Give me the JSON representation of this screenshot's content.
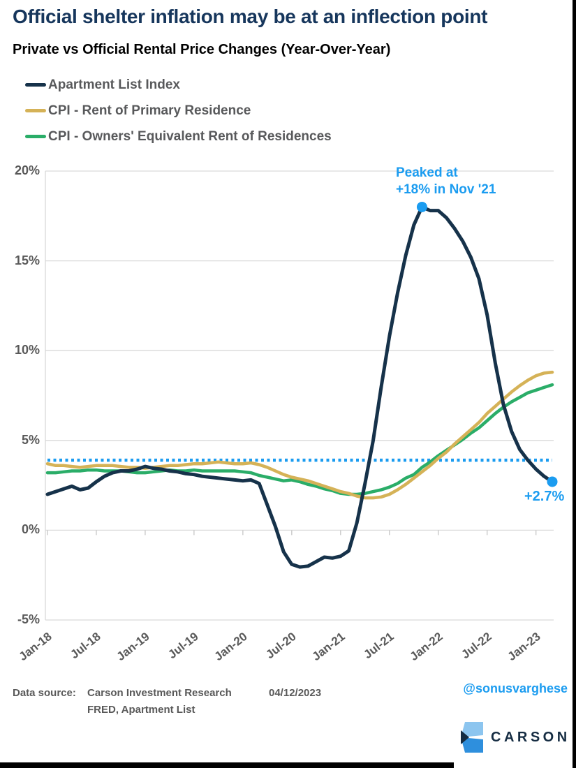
{
  "header": {
    "title": "Official shelter inflation may be at an inflection point",
    "subtitle": "Private vs Official Rental Price Changes (Year-Over-Year)"
  },
  "legend": {
    "items": [
      {
        "label": "Apartment List Index",
        "color": "#16324a"
      },
      {
        "label": "CPI - Rent of Primary Residence",
        "color": "#d5b257"
      },
      {
        "label": "CPI - Owners' Equivalent Rent of Residences",
        "color": "#2aad68"
      }
    ]
  },
  "annotations": {
    "peak_line1": "Peaked at",
    "peak_line2": "+18% in Nov '21",
    "latest": "+2.7%"
  },
  "chart_data": {
    "type": "line",
    "title": "Private vs Official Rental Price Changes (Year-Over-Year)",
    "x": [
      "Jan-18",
      "Feb-18",
      "Mar-18",
      "Apr-18",
      "May-18",
      "Jun-18",
      "Jul-18",
      "Aug-18",
      "Sep-18",
      "Oct-18",
      "Nov-18",
      "Dec-18",
      "Jan-19",
      "Feb-19",
      "Mar-19",
      "Apr-19",
      "May-19",
      "Jun-19",
      "Jul-19",
      "Aug-19",
      "Sep-19",
      "Oct-19",
      "Nov-19",
      "Dec-19",
      "Jan-20",
      "Feb-20",
      "Mar-20",
      "Apr-20",
      "May-20",
      "Jun-20",
      "Jul-20",
      "Aug-20",
      "Sep-20",
      "Oct-20",
      "Nov-20",
      "Dec-20",
      "Jan-21",
      "Feb-21",
      "Mar-21",
      "Apr-21",
      "May-21",
      "Jun-21",
      "Jul-21",
      "Aug-21",
      "Sep-21",
      "Oct-21",
      "Nov-21",
      "Dec-21",
      "Jan-22",
      "Feb-22",
      "Mar-22",
      "Apr-22",
      "May-22",
      "Jun-22",
      "Jul-22",
      "Aug-22",
      "Sep-22",
      "Oct-22",
      "Nov-22",
      "Dec-22",
      "Jan-23",
      "Feb-23",
      "Mar-23"
    ],
    "series": [
      {
        "name": "Apartment List Index",
        "color": "#16324a",
        "width": 5,
        "values": [
          2.0,
          2.15,
          2.3,
          2.45,
          2.25,
          2.35,
          2.7,
          3.0,
          3.2,
          3.3,
          3.3,
          3.4,
          3.55,
          3.45,
          3.4,
          3.3,
          3.25,
          3.15,
          3.1,
          3.0,
          2.95,
          2.9,
          2.85,
          2.8,
          2.75,
          2.8,
          2.6,
          1.4,
          0.2,
          -1.2,
          -1.9,
          -2.05,
          -2.0,
          -1.75,
          -1.5,
          -1.55,
          -1.45,
          -1.15,
          0.4,
          2.6,
          5.0,
          8.0,
          10.8,
          13.2,
          15.3,
          17.0,
          18.0,
          17.8,
          17.8,
          17.4,
          16.8,
          16.1,
          15.2,
          14.0,
          12.0,
          9.3,
          7.0,
          5.5,
          4.5,
          3.9,
          3.4,
          3.0,
          2.7
        ]
      },
      {
        "name": "CPI - Rent of Primary Residence",
        "color": "#d5b257",
        "width": 4.5,
        "values": [
          3.7,
          3.6,
          3.6,
          3.55,
          3.5,
          3.55,
          3.6,
          3.6,
          3.6,
          3.55,
          3.5,
          3.5,
          3.45,
          3.5,
          3.55,
          3.6,
          3.6,
          3.65,
          3.7,
          3.7,
          3.75,
          3.8,
          3.75,
          3.7,
          3.7,
          3.75,
          3.65,
          3.5,
          3.3,
          3.1,
          2.95,
          2.85,
          2.75,
          2.6,
          2.45,
          2.3,
          2.15,
          2.05,
          1.9,
          1.8,
          1.8,
          1.85,
          2.0,
          2.25,
          2.55,
          2.9,
          3.25,
          3.6,
          4.0,
          4.35,
          4.8,
          5.2,
          5.6,
          6.0,
          6.5,
          6.9,
          7.3,
          7.7,
          8.05,
          8.35,
          8.6,
          8.75,
          8.8
        ]
      },
      {
        "name": "CPI - Owners' Equivalent Rent of Residences",
        "color": "#2aad68",
        "width": 4.5,
        "values": [
          3.2,
          3.2,
          3.25,
          3.3,
          3.3,
          3.35,
          3.35,
          3.3,
          3.3,
          3.3,
          3.25,
          3.2,
          3.2,
          3.25,
          3.3,
          3.35,
          3.3,
          3.3,
          3.35,
          3.3,
          3.3,
          3.3,
          3.3,
          3.3,
          3.25,
          3.2,
          3.05,
          2.95,
          2.85,
          2.75,
          2.8,
          2.7,
          2.55,
          2.45,
          2.3,
          2.2,
          2.05,
          2.0,
          2.0,
          2.05,
          2.15,
          2.25,
          2.4,
          2.6,
          2.9,
          3.1,
          3.5,
          3.8,
          4.15,
          4.45,
          4.75,
          5.05,
          5.4,
          5.7,
          6.1,
          6.5,
          6.85,
          7.15,
          7.4,
          7.65,
          7.8,
          7.95,
          8.1
        ]
      }
    ],
    "reference_line": {
      "value": 3.9,
      "style": "dotted",
      "color": "#1b9cf0"
    },
    "markers": [
      {
        "x": "Nov-21",
        "index": 46,
        "value": 18.0,
        "label": "Peaked at +18% in Nov '21"
      },
      {
        "x": "Mar-23",
        "index": 62,
        "value": 2.7,
        "label": "+2.7%"
      }
    ],
    "ylim": [
      -5,
      20
    ],
    "yticks": [
      20,
      15,
      10,
      5,
      0,
      -5
    ],
    "ytick_labels": [
      "20%",
      "15%",
      "10%",
      "5%",
      "0%",
      "-5%"
    ],
    "xticks": [
      "Jan-18",
      "Jul-18",
      "Jan-19",
      "Jul-19",
      "Jan-20",
      "Jul-20",
      "Jan-21",
      "Jul-21",
      "Jan-22",
      "Jul-22",
      "Jan-23"
    ],
    "xtick_indices": [
      0,
      6,
      12,
      18,
      24,
      30,
      36,
      42,
      48,
      54,
      60
    ],
    "grid": "horizontal",
    "legend_position": "top-left"
  },
  "footer": {
    "source_label": "Data source:",
    "source_org": "Carson Investment Research",
    "date": "04/12/2023",
    "source_line2": "FRED, Apartment List",
    "handle": "@sonusvarghese",
    "brand_name": "CARSON"
  },
  "colors": {
    "accent_blue": "#1b9cf0",
    "title_navy": "#16365c",
    "gray_text": "#595959",
    "gridline": "#d9d9d9"
  }
}
